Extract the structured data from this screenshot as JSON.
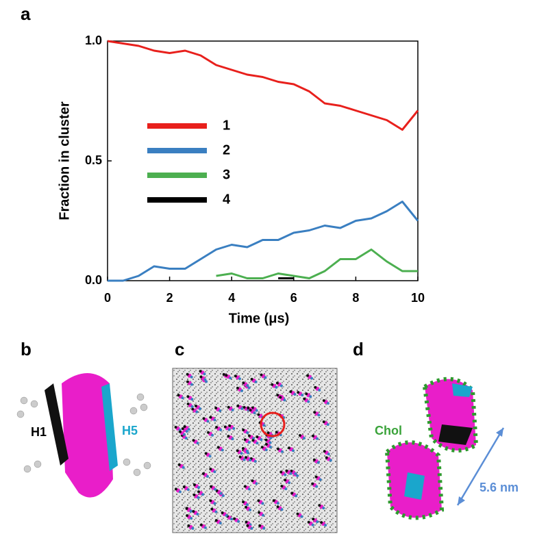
{
  "figure": {
    "panel_labels": [
      "a",
      "b",
      "c",
      "d"
    ],
    "panel_b_labels": [
      "H1",
      "H5"
    ],
    "panel_d_labels": [
      "Chol",
      "5.6 nm"
    ]
  },
  "chart_data": {
    "type": "line",
    "x_label": "Time (μs)",
    "y_label": "Fraction in cluster",
    "x": [
      0,
      0.5,
      1,
      1.5,
      2,
      2.5,
      3,
      3.5,
      4,
      4.5,
      5,
      5.5,
      6,
      6.5,
      7,
      7.5,
      8,
      8.5,
      9,
      9.5,
      10
    ],
    "series": [
      {
        "name": "1",
        "color": "#e8201c",
        "values": [
          1.0,
          0.99,
          0.98,
          0.96,
          0.95,
          0.96,
          0.94,
          0.9,
          0.88,
          0.86,
          0.85,
          0.83,
          0.82,
          0.79,
          0.74,
          0.73,
          0.71,
          0.69,
          0.67,
          0.63,
          0.71
        ]
      },
      {
        "name": "2",
        "color": "#3a7fc1",
        "values": [
          0,
          0,
          0.02,
          0.06,
          0.05,
          0.05,
          0.09,
          0.13,
          0.15,
          0.14,
          0.17,
          0.17,
          0.2,
          0.21,
          0.23,
          0.22,
          0.25,
          0.26,
          0.29,
          0.33,
          0.25
        ]
      },
      {
        "name": "3",
        "color": "#4caf50",
        "values": [
          null,
          null,
          null,
          null,
          null,
          null,
          null,
          0.02,
          0.03,
          0.01,
          0.01,
          0.03,
          0.02,
          0.01,
          0.04,
          0.09,
          0.09,
          0.13,
          0.08,
          0.04,
          0.04
        ]
      },
      {
        "name": "4",
        "color": "#000000",
        "values": [
          null,
          null,
          null,
          null,
          null,
          null,
          null,
          null,
          null,
          null,
          null,
          0.01,
          0.01,
          null,
          null,
          null,
          null,
          null,
          null,
          null,
          null
        ]
      }
    ],
    "xlim": [
      0,
      10
    ],
    "xticks": [
      0,
      2,
      4,
      6,
      8,
      10
    ],
    "ylim": [
      0,
      1
    ],
    "yticks": [
      {
        "value": 0,
        "label": "0.0"
      },
      0.5,
      {
        "value": 1,
        "label": "1.0"
      }
    ],
    "legend": "center-left",
    "grid": false
  }
}
